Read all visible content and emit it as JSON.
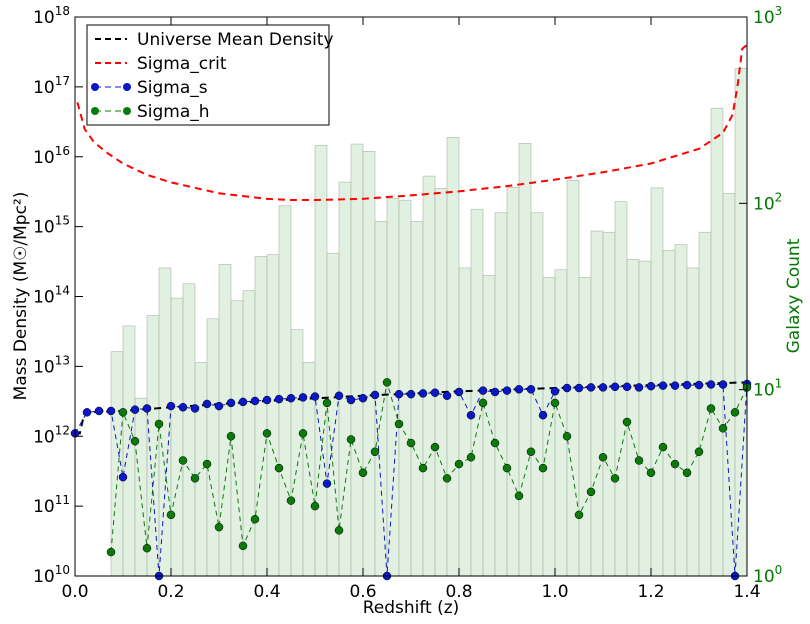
{
  "chart_data": {
    "type": "line",
    "xlabel": "Redshift (z)",
    "ylabel": "Mass Density (M☉/Mpc²)",
    "y2label": "Galaxy Count",
    "y2color": "#007700",
    "xlim": [
      0,
      1.4
    ],
    "xticks": [
      {
        "value": 0,
        "label": "0.0"
      },
      0.2,
      0.4,
      0.6,
      0.8,
      {
        "value": 1,
        "label": "1.0"
      },
      1.2,
      1.4
    ],
    "ylim": [
      10000000000.0,
      1e+18
    ],
    "ylog": true,
    "yticks": [
      {
        "value": 10000000000.0,
        "label": "10^10"
      },
      {
        "value": 100000000000.0,
        "label": "10^11"
      },
      {
        "value": 1000000000000.0,
        "label": "10^12"
      },
      {
        "value": 10000000000000.0,
        "label": "10^13"
      },
      {
        "value": 100000000000000.0,
        "label": "10^14"
      },
      {
        "value": 1000000000000000.0,
        "label": "10^15"
      },
      {
        "value": 1e+16,
        "label": "10^16"
      },
      {
        "value": 1e+17,
        "label": "10^17"
      },
      {
        "value": 1e+18,
        "label": "10^18"
      }
    ],
    "y2lim": [
      1,
      1000
    ],
    "y2log": true,
    "y2ticks": [
      {
        "value": 1,
        "label": "10^0"
      },
      {
        "value": 10,
        "label": "10^1"
      },
      {
        "value": 100,
        "label": "10^2"
      },
      {
        "value": 1000,
        "label": "10^3"
      }
    ],
    "legend": "upper left",
    "histogram": {
      "axis": "y2",
      "color": "#d6ead6",
      "edgecolor": "#a9b8a9",
      "bins": [
        0.075,
        0.1,
        0.125,
        0.15,
        0.175,
        0.2,
        0.225,
        0.25,
        0.275,
        0.3,
        0.325,
        0.35,
        0.375,
        0.4,
        0.425,
        0.45,
        0.475,
        0.5,
        0.525,
        0.55,
        0.575,
        0.6,
        0.625,
        0.65,
        0.675,
        0.7,
        0.725,
        0.75,
        0.775,
        0.8,
        0.825,
        0.85,
        0.875,
        0.9,
        0.925,
        0.95,
        0.975,
        1.0,
        1.025,
        1.05,
        1.075,
        1.1,
        1.125,
        1.15,
        1.175,
        1.2,
        1.225,
        1.25,
        1.275,
        1.3,
        1.325,
        1.35,
        1.375,
        1.4
      ],
      "values": [
        16,
        22,
        9,
        25,
        45,
        31,
        37,
        14,
        24,
        47,
        30,
        34,
        52,
        53,
        97,
        21,
        14,
        205,
        54,
        130,
        208,
        190,
        80,
        106,
        104,
        80,
        140,
        120,
        226,
        45,
        93,
        41,
        89,
        122,
        210,
        89,
        40,
        44,
        133,
        40,
        71,
        70,
        102,
        50,
        49,
        121,
        56,
        60,
        45,
        70,
        324,
        113,
        530
      ]
    },
    "series": [
      {
        "name": "Universe Mean Density",
        "color": "#000000",
        "linestyle": "dashed",
        "linewidth": 2,
        "marker": false,
        "x": [
          0,
          0.01,
          0.02,
          0.1,
          0.2,
          0.4,
          0.6,
          0.8,
          1.0,
          1.2,
          1.4
        ],
        "values": [
          1100000000000.0,
          1100000000000.0,
          2200000000000.0,
          2300000000000.0,
          2600000000000.0,
          3200000000000.0,
          3800000000000.0,
          4400000000000.0,
          4900000000000.0,
          5400000000000.0,
          5900000000000.0
        ]
      },
      {
        "name": "Sigma_crit",
        "color": "#ff0000",
        "linestyle": "dashed",
        "linewidth": 2,
        "marker": false,
        "x": [
          0.005,
          0.01,
          0.02,
          0.04,
          0.07,
          0.1,
          0.15,
          0.2,
          0.3,
          0.4,
          0.45,
          0.5,
          0.6,
          0.7,
          0.8,
          0.9,
          1.0,
          1.1,
          1.2,
          1.3,
          1.35,
          1.37,
          1.38,
          1.39,
          1.4
        ],
        "values": [
          6e+16,
          4.5e+16,
          2.5e+16,
          1.6e+16,
          1.1e+16,
          8000000000000000.0,
          5500000000000000.0,
          4300000000000000.0,
          3000000000000000.0,
          2500000000000000.0,
          2400000000000000.0,
          2400000000000000.0,
          2500000000000000.0,
          2800000000000000.0,
          3200000000000000.0,
          3800000000000000.0,
          4700000000000000.0,
          6000000000000000.0,
          8000000000000000.0,
          1.3e+16,
          2.2e+16,
          4e+16,
          1e+17,
          3.5e+17,
          4e+17
        ]
      },
      {
        "name": "Sigma_s",
        "color": "#0a18c8",
        "linestyle": "dashed",
        "linewidth": 1,
        "marker": true,
        "x": [
          0,
          0.025,
          0.05,
          0.075,
          0.1,
          0.125,
          0.15,
          0.175,
          0.2,
          0.225,
          0.25,
          0.275,
          0.3,
          0.325,
          0.35,
          0.375,
          0.4,
          0.425,
          0.45,
          0.475,
          0.5,
          0.525,
          0.55,
          0.575,
          0.6,
          0.625,
          0.65,
          0.675,
          0.7,
          0.725,
          0.75,
          0.775,
          0.8,
          0.825,
          0.85,
          0.875,
          0.9,
          0.925,
          0.95,
          0.975,
          1.0,
          1.025,
          1.05,
          1.075,
          1.1,
          1.125,
          1.15,
          1.175,
          1.2,
          1.225,
          1.25,
          1.275,
          1.3,
          1.325,
          1.35,
          1.375,
          1.4
        ],
        "values": [
          1100000000000.0,
          2200000000000.0,
          2300000000000.0,
          2300000000000.0,
          260000000000.0,
          2400000000000.0,
          2500000000000.0,
          10000000000.0,
          2700000000000.0,
          2600000000000.0,
          2500000000000.0,
          2900000000000.0,
          2700000000000.0,
          3000000000000.0,
          3100000000000.0,
          3200000000000.0,
          3300000000000.0,
          3400000000000.0,
          3500000000000.0,
          3600000000000.0,
          3700000000000.0,
          210000000000.0,
          3800000000000.0,
          3300000000000.0,
          3500000000000.0,
          3900000000000.0,
          10000000000.0,
          4000000000000.0,
          4000000000000.0,
          4100000000000.0,
          4200000000000.0,
          3800000000000.0,
          4300000000000.0,
          2000000000000.0,
          4500000000000.0,
          4300000000000.0,
          4500000000000.0,
          4700000000000.0,
          4700000000000.0,
          2000000000000.0,
          4400000000000.0,
          4900000000000.0,
          4900000000000.0,
          5000000000000.0,
          5000000000000.0,
          5100000000000.0,
          5100000000000.0,
          5000000000000.0,
          5200000000000.0,
          5300000000000.0,
          5300000000000.0,
          5400000000000.0,
          5400000000000.0,
          5500000000000.0,
          5500000000000.0,
          10000000000.0,
          5600000000000.0
        ]
      },
      {
        "name": "Sigma_h",
        "color": "#0b7a0b",
        "linestyle": "dashed",
        "linewidth": 1,
        "marker": true,
        "x": [
          0.075,
          0.1,
          0.125,
          0.15,
          0.175,
          0.2,
          0.225,
          0.25,
          0.275,
          0.3,
          0.325,
          0.35,
          0.375,
          0.4,
          0.425,
          0.45,
          0.475,
          0.5,
          0.525,
          0.55,
          0.575,
          0.6,
          0.625,
          0.65,
          0.675,
          0.7,
          0.725,
          0.75,
          0.775,
          0.8,
          0.825,
          0.85,
          0.875,
          0.9,
          0.925,
          0.95,
          0.975,
          1.0,
          1.025,
          1.05,
          1.075,
          1.1,
          1.125,
          1.15,
          1.175,
          1.2,
          1.225,
          1.25,
          1.275,
          1.3,
          1.325,
          1.35,
          1.375,
          1.4
        ],
        "values": [
          22000000000.0,
          2200000000000.0,
          850000000000.0,
          25000000000.0,
          1500000000000.0,
          75000000000.0,
          450000000000.0,
          250000000000.0,
          400000000000.0,
          50000000000.0,
          1000000000000.0,
          27000000000.0,
          65000000000.0,
          1100000000000.0,
          350000000000.0,
          120000000000.0,
          1100000000000.0,
          100000000000.0,
          3000000000000.0,
          45000000000.0,
          900000000000.0,
          300000000000.0,
          600000000000.0,
          5900000000000.0,
          1500000000000.0,
          800000000000.0,
          350000000000.0,
          700000000000.0,
          250000000000.0,
          400000000000.0,
          500000000000.0,
          3000000000000.0,
          800000000000.0,
          350000000000.0,
          140000000000.0,
          600000000000.0,
          350000000000.0,
          3000000000000.0,
          1000000000000.0,
          75000000000.0,
          160000000000.0,
          500000000000.0,
          250000000000.0,
          1600000000000.0,
          450000000000.0,
          300000000000.0,
          700000000000.0,
          400000000000.0,
          300000000000.0,
          600000000000.0,
          2500000000000.0,
          1300000000000.0,
          2200000000000.0,
          5000000000000.0
        ]
      }
    ]
  }
}
